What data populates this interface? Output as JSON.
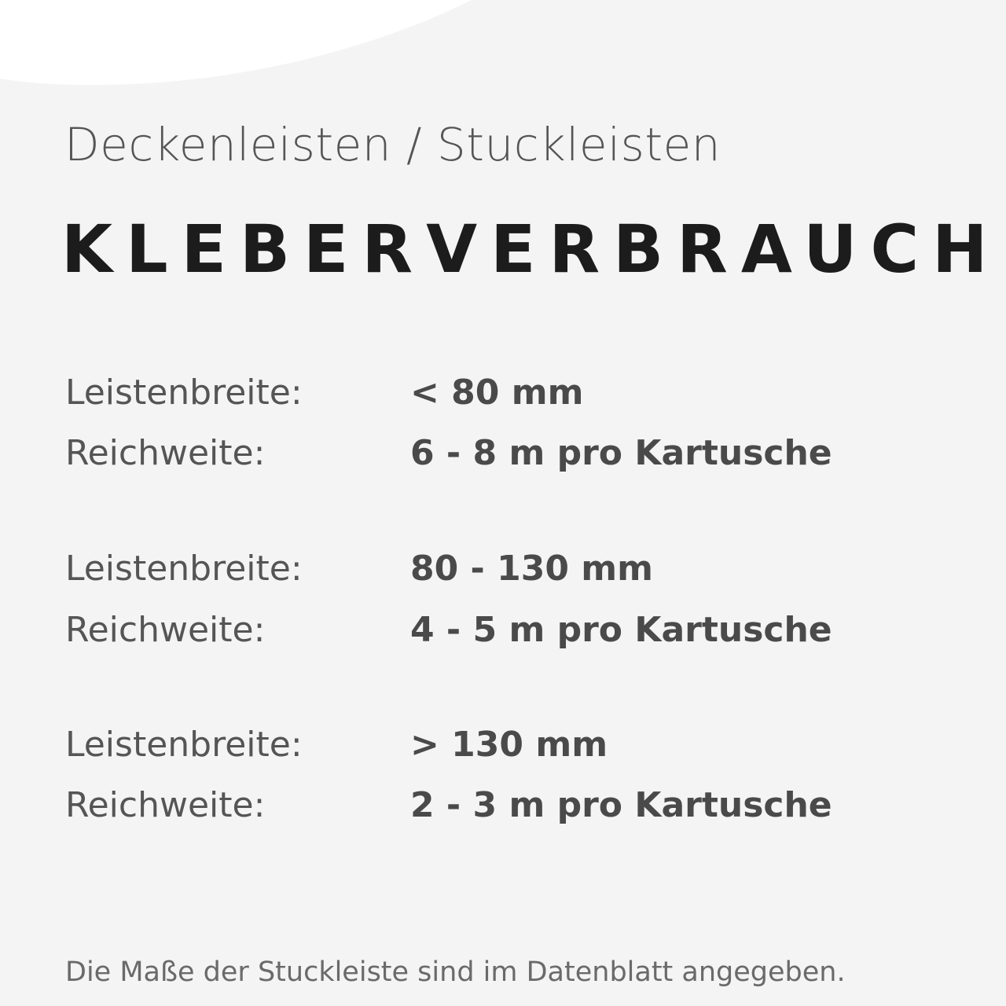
{
  "subtitle": "Deckenleisten / Stuckleisten",
  "title": "KLEBERVERBRAUCH",
  "groups": [
    {
      "width_label": "Leistenbreite:",
      "width_value": "< 80 mm",
      "range_label": "Reichweite:",
      "range_value": "6 - 8 m pro Kartusche"
    },
    {
      "width_label": "Leistenbreite:",
      "width_value": "80 - 130 mm",
      "range_label": "Reichweite:",
      "range_value": "4 - 5 m pro Kartusche"
    },
    {
      "width_label": "Leistenbreite:",
      "width_value": "> 130 mm",
      "range_label": "Reichweite:",
      "range_value": "2 - 3 m pro Kartusche"
    }
  ],
  "footer": "Die Maße der Stuckleiste sind im Datenblatt angegeben.",
  "colors": {
    "background": "#f4f4f4",
    "accent_shape": "#ffffff",
    "title": "#1c1c1c",
    "text": "#555555"
  }
}
